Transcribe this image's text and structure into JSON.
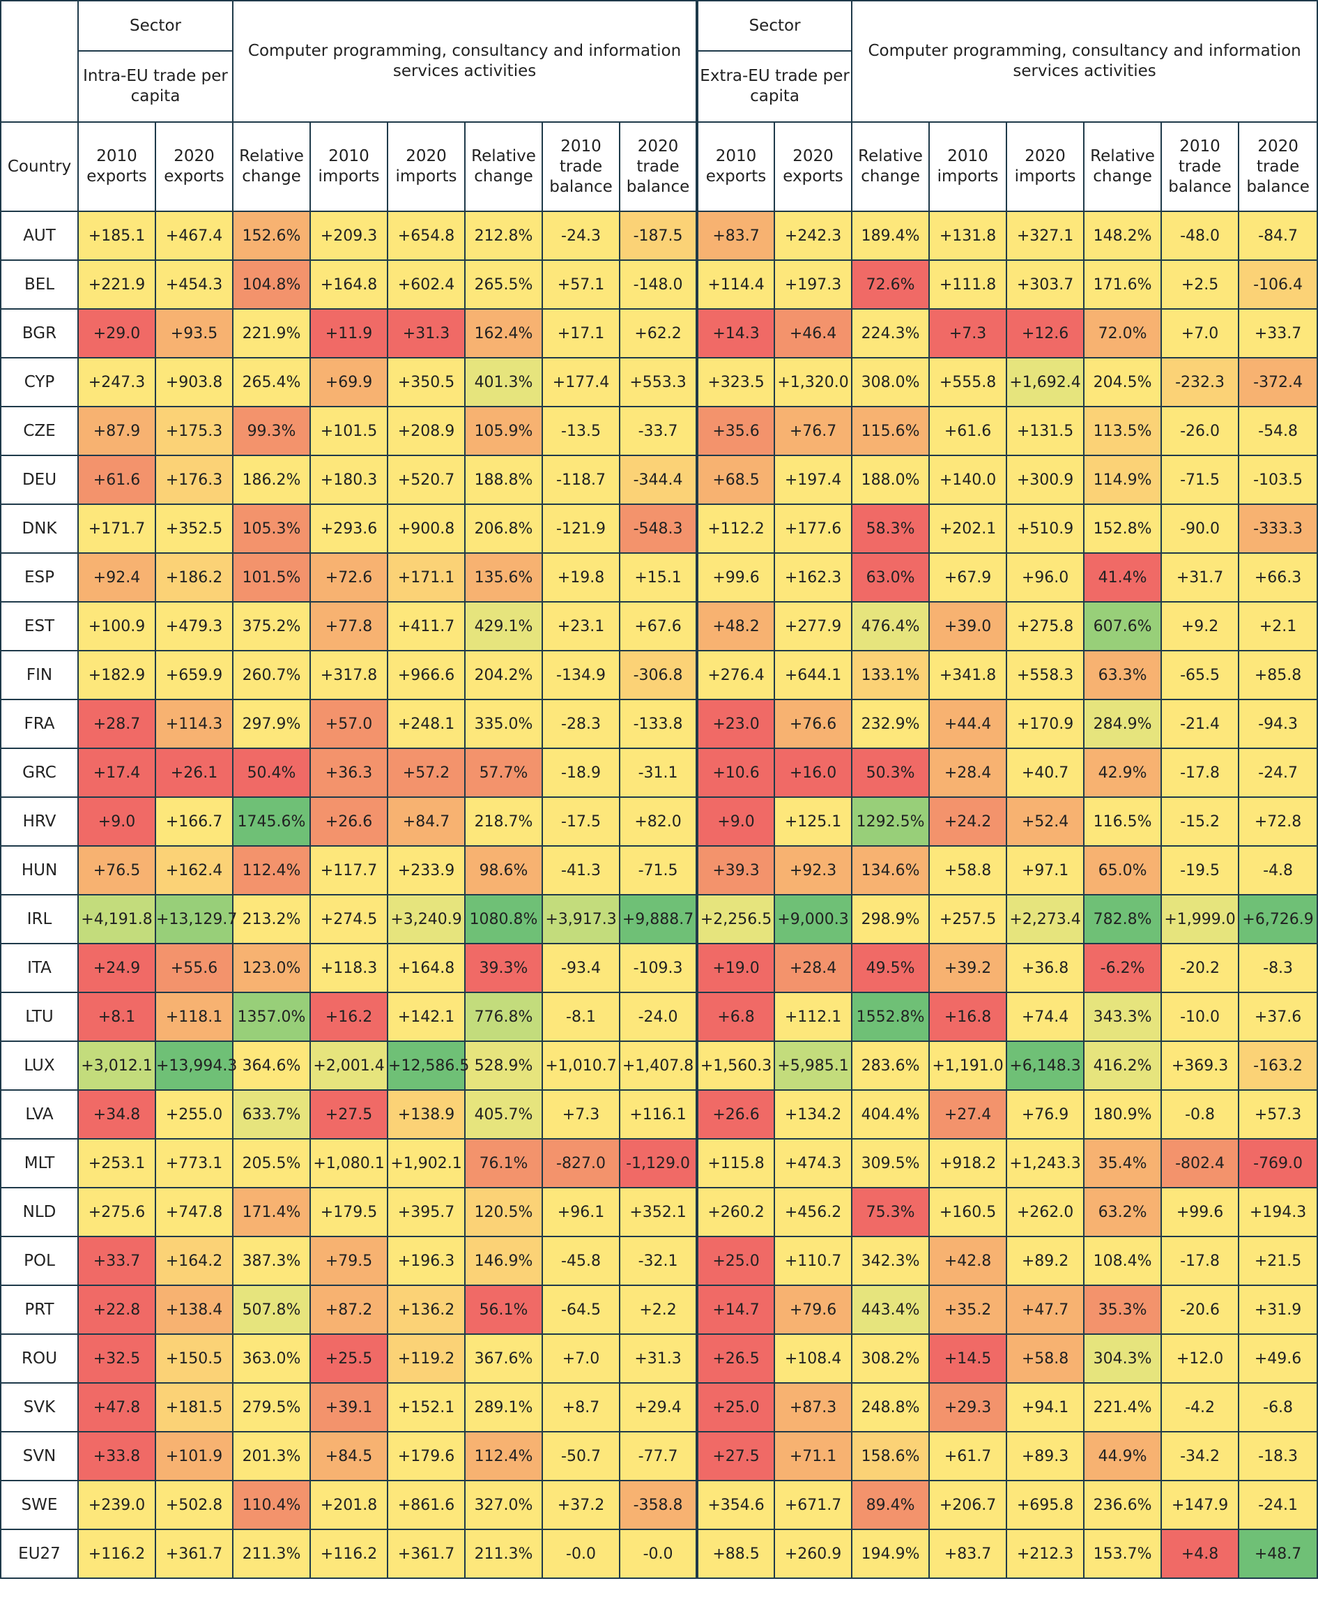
{
  "header": {
    "sector_label": "Sector",
    "activity_label": "Computer programming, consultancy and information services activities",
    "intra_label": "Intra-EU trade per capita",
    "extra_label": "Extra-EU trade per capita",
    "country_label": "Country",
    "columns": [
      "2010 exports",
      "2020 exports",
      "Relative change",
      "2010 imports",
      "2020 imports",
      "Relative change",
      "2010 trade balance",
      "2020 trade balance"
    ]
  },
  "colors": {
    "red": "#f06a66",
    "orange_red": "#f3936c",
    "orange": "#f7b271",
    "yellow_orange": "#fbd276",
    "yellow": "#fde77b",
    "yellow_green": "#e6e47d",
    "light_green": "#c3dc7c",
    "mid_green": "#98cf79",
    "green": "#6fc076",
    "border": "#1f3a4a"
  },
  "rows": [
    {
      "country": "AUT",
      "values": [
        "+185.1",
        "+467.4",
        "152.6%",
        "+209.3",
        "+654.8",
        "212.8%",
        "-24.3",
        "-187.5",
        "+83.7",
        "+242.3",
        "189.4%",
        "+131.8",
        "+327.1",
        "148.2%",
        "-48.0",
        "-84.7"
      ],
      "colors": [
        "yellow",
        "yellow",
        "orange",
        "yellow",
        "yellow",
        "yellow",
        "yellow",
        "yellow_orange",
        "orange",
        "yellow",
        "yellow",
        "yellow",
        "yellow",
        "yellow",
        "yellow",
        "yellow"
      ]
    },
    {
      "country": "BEL",
      "values": [
        "+221.9",
        "+454.3",
        "104.8%",
        "+164.8",
        "+602.4",
        "265.5%",
        "+57.1",
        "-148.0",
        "+114.4",
        "+197.3",
        "72.6%",
        "+111.8",
        "+303.7",
        "171.6%",
        "+2.5",
        "-106.4"
      ],
      "colors": [
        "yellow",
        "yellow",
        "orange_red",
        "yellow",
        "yellow",
        "yellow",
        "yellow",
        "yellow",
        "yellow",
        "yellow",
        "red",
        "yellow",
        "yellow",
        "yellow",
        "yellow",
        "yellow_orange"
      ]
    },
    {
      "country": "BGR",
      "values": [
        "+29.0",
        "+93.5",
        "221.9%",
        "+11.9",
        "+31.3",
        "162.4%",
        "+17.1",
        "+62.2",
        "+14.3",
        "+46.4",
        "224.3%",
        "+7.3",
        "+12.6",
        "72.0%",
        "+7.0",
        "+33.7"
      ],
      "colors": [
        "red",
        "orange",
        "yellow",
        "red",
        "red",
        "orange",
        "yellow",
        "yellow",
        "red",
        "orange_red",
        "yellow",
        "red",
        "red",
        "orange",
        "yellow",
        "yellow"
      ]
    },
    {
      "country": "CYP",
      "values": [
        "+247.3",
        "+903.8",
        "265.4%",
        "+69.9",
        "+350.5",
        "401.3%",
        "+177.4",
        "+553.3",
        "+323.5",
        "+1,320.0",
        "308.0%",
        "+555.8",
        "+1,692.4",
        "204.5%",
        "-232.3",
        "-372.4"
      ],
      "colors": [
        "yellow",
        "yellow",
        "yellow",
        "orange",
        "yellow",
        "yellow_green",
        "yellow",
        "yellow",
        "yellow",
        "yellow",
        "yellow",
        "yellow",
        "yellow_green",
        "yellow",
        "yellow_orange",
        "orange"
      ]
    },
    {
      "country": "CZE",
      "values": [
        "+87.9",
        "+175.3",
        "99.3%",
        "+101.5",
        "+208.9",
        "105.9%",
        "-13.5",
        "-33.7",
        "+35.6",
        "+76.7",
        "115.6%",
        "+61.6",
        "+131.5",
        "113.5%",
        "-26.0",
        "-54.8"
      ],
      "colors": [
        "orange",
        "yellow_orange",
        "orange_red",
        "yellow",
        "yellow",
        "orange",
        "yellow",
        "yellow",
        "orange_red",
        "orange",
        "orange",
        "yellow",
        "yellow",
        "yellow_orange",
        "yellow",
        "yellow"
      ]
    },
    {
      "country": "DEU",
      "values": [
        "+61.6",
        "+176.3",
        "186.2%",
        "+180.3",
        "+520.7",
        "188.8%",
        "-118.7",
        "-344.4",
        "+68.5",
        "+197.4",
        "188.0%",
        "+140.0",
        "+300.9",
        "114.9%",
        "-71.5",
        "-103.5"
      ],
      "colors": [
        "orange_red",
        "yellow_orange",
        "yellow",
        "yellow",
        "yellow",
        "yellow",
        "yellow",
        "yellow_orange",
        "orange",
        "yellow",
        "yellow",
        "yellow",
        "yellow",
        "yellow_orange",
        "yellow",
        "yellow"
      ]
    },
    {
      "country": "DNK",
      "values": [
        "+171.7",
        "+352.5",
        "105.3%",
        "+293.6",
        "+900.8",
        "206.8%",
        "-121.9",
        "-548.3",
        "+112.2",
        "+177.6",
        "58.3%",
        "+202.1",
        "+510.9",
        "152.8%",
        "-90.0",
        "-333.3"
      ],
      "colors": [
        "yellow",
        "yellow",
        "orange_red",
        "yellow",
        "yellow",
        "yellow",
        "yellow",
        "orange_red",
        "yellow",
        "yellow",
        "red",
        "yellow",
        "yellow",
        "yellow",
        "yellow",
        "orange"
      ]
    },
    {
      "country": "ESP",
      "values": [
        "+92.4",
        "+186.2",
        "101.5%",
        "+72.6",
        "+171.1",
        "135.6%",
        "+19.8",
        "+15.1",
        "+99.6",
        "+162.3",
        "63.0%",
        "+67.9",
        "+96.0",
        "41.4%",
        "+31.7",
        "+66.3"
      ],
      "colors": [
        "orange",
        "yellow_orange",
        "orange_red",
        "orange",
        "yellow_orange",
        "orange",
        "yellow",
        "yellow",
        "yellow",
        "yellow",
        "red",
        "yellow",
        "yellow",
        "red",
        "yellow",
        "yellow"
      ]
    },
    {
      "country": "EST",
      "values": [
        "+100.9",
        "+479.3",
        "375.2%",
        "+77.8",
        "+411.7",
        "429.1%",
        "+23.1",
        "+67.6",
        "+48.2",
        "+277.9",
        "476.4%",
        "+39.0",
        "+275.8",
        "607.6%",
        "+9.2",
        "+2.1"
      ],
      "colors": [
        "yellow",
        "yellow",
        "yellow",
        "orange",
        "yellow",
        "yellow_green",
        "yellow",
        "yellow",
        "orange",
        "yellow",
        "yellow_green",
        "orange",
        "yellow",
        "mid_green",
        "yellow",
        "yellow"
      ]
    },
    {
      "country": "FIN",
      "values": [
        "+182.9",
        "+659.9",
        "260.7%",
        "+317.8",
        "+966.6",
        "204.2%",
        "-134.9",
        "-306.8",
        "+276.4",
        "+644.1",
        "133.1%",
        "+341.8",
        "+558.3",
        "63.3%",
        "-65.5",
        "+85.8"
      ],
      "colors": [
        "yellow",
        "yellow",
        "yellow",
        "yellow",
        "yellow",
        "yellow",
        "yellow",
        "yellow_orange",
        "yellow",
        "yellow",
        "yellow_orange",
        "yellow",
        "yellow",
        "orange",
        "yellow",
        "yellow"
      ]
    },
    {
      "country": "FRA",
      "values": [
        "+28.7",
        "+114.3",
        "297.9%",
        "+57.0",
        "+248.1",
        "335.0%",
        "-28.3",
        "-133.8",
        "+23.0",
        "+76.6",
        "232.9%",
        "+44.4",
        "+170.9",
        "284.9%",
        "-21.4",
        "-94.3"
      ],
      "colors": [
        "red",
        "orange",
        "yellow",
        "orange_red",
        "yellow",
        "yellow",
        "yellow",
        "yellow",
        "red",
        "orange",
        "yellow",
        "orange",
        "yellow",
        "yellow_green",
        "yellow",
        "yellow"
      ]
    },
    {
      "country": "GRC",
      "values": [
        "+17.4",
        "+26.1",
        "50.4%",
        "+36.3",
        "+57.2",
        "57.7%",
        "-18.9",
        "-31.1",
        "+10.6",
        "+16.0",
        "50.3%",
        "+28.4",
        "+40.7",
        "42.9%",
        "-17.8",
        "-24.7"
      ],
      "colors": [
        "red",
        "red",
        "red",
        "orange_red",
        "orange_red",
        "orange_red",
        "yellow",
        "yellow",
        "red",
        "red",
        "red",
        "orange",
        "yellow",
        "orange",
        "yellow",
        "yellow"
      ]
    },
    {
      "country": "HRV",
      "values": [
        "+9.0",
        "+166.7",
        "1745.6%",
        "+26.6",
        "+84.7",
        "218.7%",
        "-17.5",
        "+82.0",
        "+9.0",
        "+125.1",
        "1292.5%",
        "+24.2",
        "+52.4",
        "116.5%",
        "-15.2",
        "+72.8"
      ],
      "colors": [
        "red",
        "yellow",
        "green",
        "orange_red",
        "orange",
        "yellow",
        "yellow",
        "yellow",
        "red",
        "yellow",
        "mid_green",
        "orange_red",
        "orange",
        "yellow",
        "yellow",
        "yellow"
      ]
    },
    {
      "country": "HUN",
      "values": [
        "+76.5",
        "+162.4",
        "112.4%",
        "+117.7",
        "+233.9",
        "98.6%",
        "-41.3",
        "-71.5",
        "+39.3",
        "+92.3",
        "134.6%",
        "+58.8",
        "+97.1",
        "65.0%",
        "-19.5",
        "-4.8"
      ],
      "colors": [
        "orange",
        "yellow_orange",
        "orange_red",
        "yellow",
        "yellow",
        "orange",
        "yellow",
        "yellow",
        "orange_red",
        "orange",
        "orange",
        "yellow",
        "yellow",
        "orange",
        "yellow",
        "yellow"
      ]
    },
    {
      "country": "IRL",
      "values": [
        "+4,191.8",
        "+13,129.7",
        "213.2%",
        "+274.5",
        "+3,240.9",
        "1080.8%",
        "+3,917.3",
        "+9,888.7",
        "+2,256.5",
        "+9,000.3",
        "298.9%",
        "+257.5",
        "+2,273.4",
        "782.8%",
        "+1,999.0",
        "+6,726.9"
      ],
      "colors": [
        "light_green",
        "mid_green",
        "yellow",
        "yellow",
        "yellow_green",
        "green",
        "light_green",
        "green",
        "yellow_green",
        "green",
        "yellow",
        "yellow",
        "yellow_green",
        "green",
        "yellow_green",
        "green"
      ]
    },
    {
      "country": "ITA",
      "values": [
        "+24.9",
        "+55.6",
        "123.0%",
        "+118.3",
        "+164.8",
        "39.3%",
        "-93.4",
        "-109.3",
        "+19.0",
        "+28.4",
        "49.5%",
        "+39.2",
        "+36.8",
        "-6.2%",
        "-20.2",
        "-8.3"
      ],
      "colors": [
        "red",
        "orange_red",
        "orange",
        "yellow",
        "yellow",
        "red",
        "yellow",
        "yellow",
        "red",
        "orange_red",
        "red",
        "orange",
        "yellow",
        "red",
        "yellow",
        "yellow"
      ]
    },
    {
      "country": "LTU",
      "values": [
        "+8.1",
        "+118.1",
        "1357.0%",
        "+16.2",
        "+142.1",
        "776.8%",
        "-8.1",
        "-24.0",
        "+6.8",
        "+112.1",
        "1552.8%",
        "+16.8",
        "+74.4",
        "343.3%",
        "-10.0",
        "+37.6"
      ],
      "colors": [
        "red",
        "orange",
        "mid_green",
        "red",
        "yellow",
        "light_green",
        "yellow",
        "yellow",
        "red",
        "yellow",
        "green",
        "red",
        "yellow",
        "yellow_green",
        "yellow",
        "yellow"
      ]
    },
    {
      "country": "LUX",
      "values": [
        "+3,012.1",
        "+13,994.3",
        "364.6%",
        "+2,001.4",
        "+12,586.5",
        "528.9%",
        "+1,010.7",
        "+1,407.8",
        "+1,560.3",
        "+5,985.1",
        "283.6%",
        "+1,191.0",
        "+6,148.3",
        "416.2%",
        "+369.3",
        "-163.2"
      ],
      "colors": [
        "light_green",
        "green",
        "yellow",
        "yellow_green",
        "green",
        "yellow_green",
        "yellow",
        "yellow",
        "yellow",
        "light_green",
        "yellow",
        "yellow",
        "green",
        "yellow_green",
        "yellow",
        "yellow_orange"
      ]
    },
    {
      "country": "LVA",
      "values": [
        "+34.8",
        "+255.0",
        "633.7%",
        "+27.5",
        "+138.9",
        "405.7%",
        "+7.3",
        "+116.1",
        "+26.6",
        "+134.2",
        "404.4%",
        "+27.4",
        "+76.9",
        "180.9%",
        "-0.8",
        "+57.3"
      ],
      "colors": [
        "red",
        "yellow",
        "yellow_green",
        "red",
        "yellow_orange",
        "yellow_green",
        "yellow",
        "yellow",
        "red",
        "yellow",
        "yellow",
        "orange_red",
        "yellow",
        "yellow",
        "yellow",
        "yellow"
      ]
    },
    {
      "country": "MLT",
      "values": [
        "+253.1",
        "+773.1",
        "205.5%",
        "+1,080.1",
        "+1,902.1",
        "76.1%",
        "-827.0",
        "-1,129.0",
        "+115.8",
        "+474.3",
        "309.5%",
        "+918.2",
        "+1,243.3",
        "35.4%",
        "-802.4",
        "-769.0"
      ],
      "colors": [
        "yellow",
        "yellow",
        "yellow",
        "yellow",
        "yellow",
        "orange_red",
        "orange_red",
        "red",
        "yellow",
        "yellow",
        "yellow",
        "yellow",
        "yellow",
        "orange",
        "orange_red",
        "red"
      ]
    },
    {
      "country": "NLD",
      "values": [
        "+275.6",
        "+747.8",
        "171.4%",
        "+179.5",
        "+395.7",
        "120.5%",
        "+96.1",
        "+352.1",
        "+260.2",
        "+456.2",
        "75.3%",
        "+160.5",
        "+262.0",
        "63.2%",
        "+99.6",
        "+194.3"
      ],
      "colors": [
        "yellow",
        "yellow",
        "orange",
        "yellow",
        "yellow",
        "yellow_orange",
        "yellow",
        "yellow",
        "yellow",
        "yellow",
        "red",
        "yellow",
        "yellow",
        "orange",
        "yellow",
        "yellow"
      ]
    },
    {
      "country": "POL",
      "values": [
        "+33.7",
        "+164.2",
        "387.3%",
        "+79.5",
        "+196.3",
        "146.9%",
        "-45.8",
        "-32.1",
        "+25.0",
        "+110.7",
        "342.3%",
        "+42.8",
        "+89.2",
        "108.4%",
        "-17.8",
        "+21.5"
      ],
      "colors": [
        "red",
        "yellow_orange",
        "yellow",
        "orange",
        "yellow",
        "yellow_orange",
        "yellow",
        "yellow",
        "red",
        "yellow",
        "yellow",
        "orange",
        "yellow",
        "yellow",
        "yellow",
        "yellow"
      ]
    },
    {
      "country": "PRT",
      "values": [
        "+22.8",
        "+138.4",
        "507.8%",
        "+87.2",
        "+136.2",
        "56.1%",
        "-64.5",
        "+2.2",
        "+14.7",
        "+79.6",
        "443.4%",
        "+35.2",
        "+47.7",
        "35.3%",
        "-20.6",
        "+31.9"
      ],
      "colors": [
        "red",
        "orange",
        "yellow_green",
        "orange",
        "yellow_orange",
        "red",
        "yellow",
        "yellow",
        "red",
        "orange",
        "yellow_green",
        "orange",
        "orange",
        "orange_red",
        "yellow",
        "yellow"
      ]
    },
    {
      "country": "ROU",
      "values": [
        "+32.5",
        "+150.5",
        "363.0%",
        "+25.5",
        "+119.2",
        "367.6%",
        "+7.0",
        "+31.3",
        "+26.5",
        "+108.4",
        "308.2%",
        "+14.5",
        "+58.8",
        "304.3%",
        "+12.0",
        "+49.6"
      ],
      "colors": [
        "red",
        "yellow_orange",
        "yellow",
        "red",
        "yellow_orange",
        "yellow",
        "yellow",
        "yellow",
        "red",
        "yellow",
        "yellow",
        "red",
        "orange",
        "yellow_green",
        "yellow",
        "yellow"
      ]
    },
    {
      "country": "SVK",
      "values": [
        "+47.8",
        "+181.5",
        "279.5%",
        "+39.1",
        "+152.1",
        "289.1%",
        "+8.7",
        "+29.4",
        "+25.0",
        "+87.3",
        "248.8%",
        "+29.3",
        "+94.1",
        "221.4%",
        "-4.2",
        "-6.8"
      ],
      "colors": [
        "red",
        "yellow_orange",
        "yellow",
        "orange_red",
        "yellow",
        "yellow",
        "yellow",
        "yellow",
        "red",
        "orange",
        "yellow",
        "orange_red",
        "yellow",
        "yellow",
        "yellow",
        "yellow"
      ]
    },
    {
      "country": "SVN",
      "values": [
        "+33.8",
        "+101.9",
        "201.3%",
        "+84.5",
        "+179.6",
        "112.4%",
        "-50.7",
        "-77.7",
        "+27.5",
        "+71.1",
        "158.6%",
        "+61.7",
        "+89.3",
        "44.9%",
        "-34.2",
        "-18.3"
      ],
      "colors": [
        "red",
        "orange",
        "yellow",
        "orange",
        "yellow",
        "orange",
        "yellow",
        "yellow",
        "red",
        "orange",
        "yellow_orange",
        "yellow",
        "yellow",
        "orange",
        "yellow",
        "yellow"
      ]
    },
    {
      "country": "SWE",
      "values": [
        "+239.0",
        "+502.8",
        "110.4%",
        "+201.8",
        "+861.6",
        "327.0%",
        "+37.2",
        "-358.8",
        "+354.6",
        "+671.7",
        "89.4%",
        "+206.7",
        "+695.8",
        "236.6%",
        "+147.9",
        "-24.1"
      ],
      "colors": [
        "yellow",
        "yellow",
        "orange_red",
        "yellow",
        "yellow",
        "yellow",
        "yellow",
        "orange",
        "yellow",
        "yellow",
        "orange_red",
        "yellow",
        "yellow",
        "yellow",
        "yellow",
        "yellow"
      ]
    },
    {
      "country": "EU27",
      "values": [
        "+116.2",
        "+361.7",
        "211.3%",
        "+116.2",
        "+361.7",
        "211.3%",
        "-0.0",
        "-0.0",
        "+88.5",
        "+260.9",
        "194.9%",
        "+83.7",
        "+212.3",
        "153.7%",
        "+4.8",
        "+48.7"
      ],
      "colors": [
        "yellow",
        "yellow",
        "yellow",
        "yellow",
        "yellow",
        "yellow",
        "yellow",
        "yellow",
        "yellow",
        "yellow",
        "yellow",
        "yellow",
        "yellow",
        "yellow",
        "red",
        "green"
      ]
    }
  ]
}
